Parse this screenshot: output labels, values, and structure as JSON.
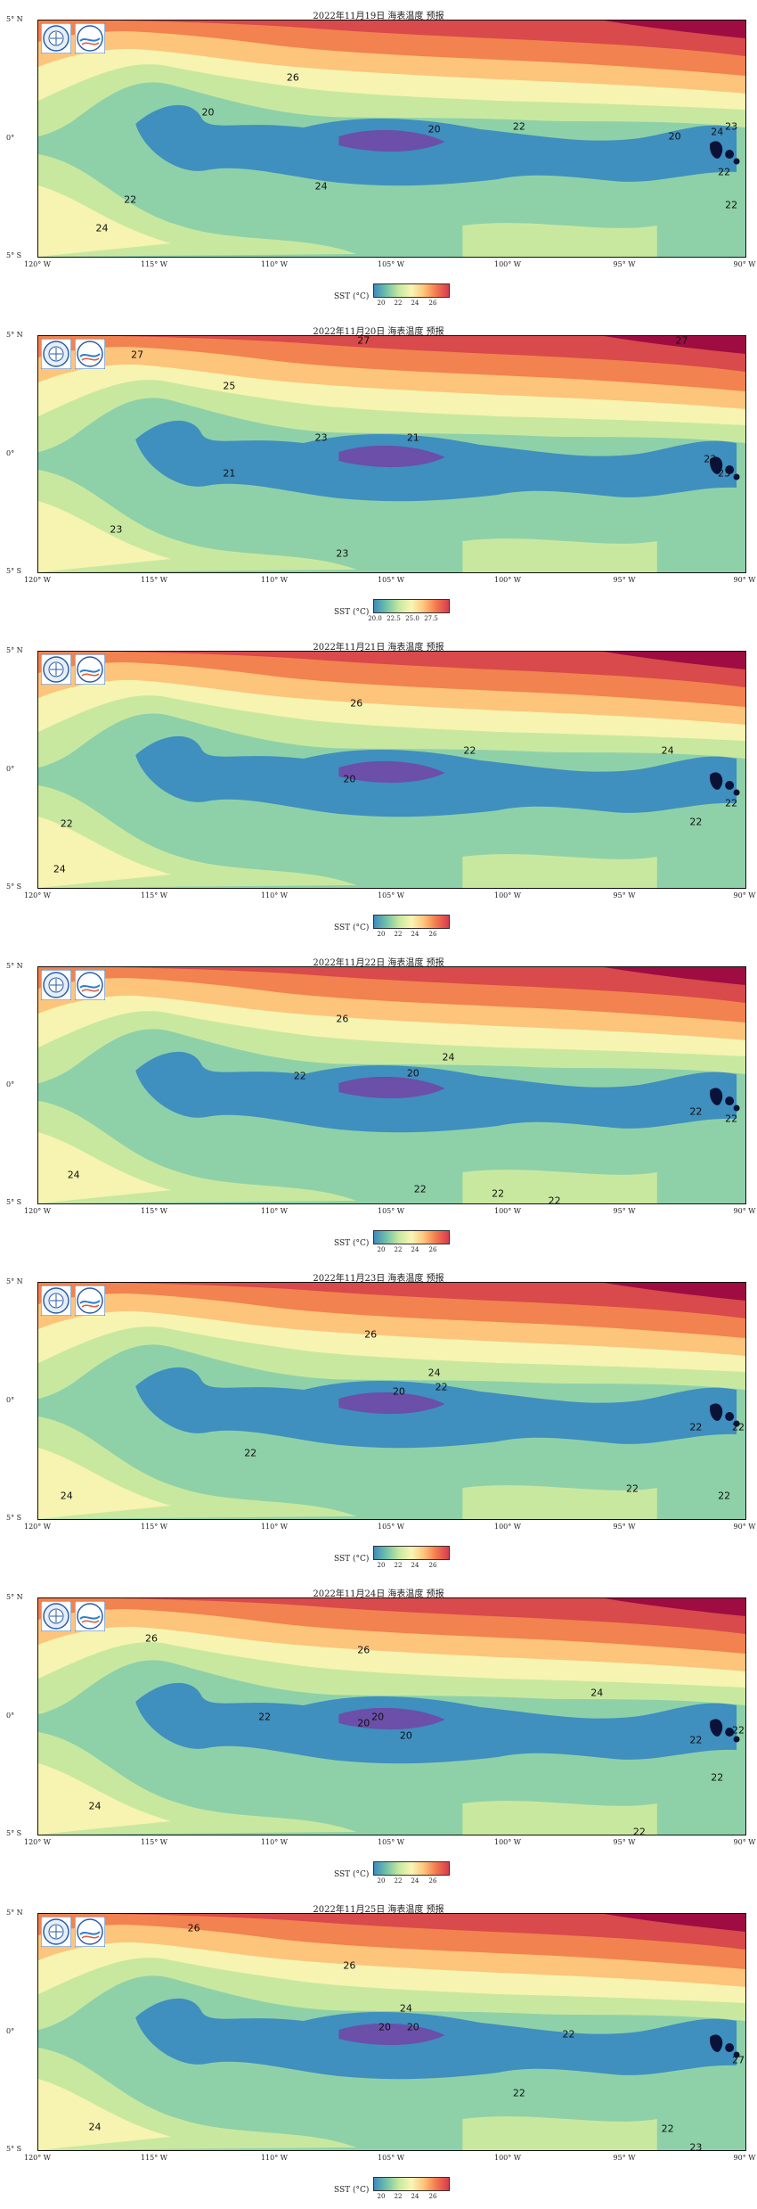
{
  "panels": [
    {
      "title": "2022年11月19日 海表温度 预报",
      "labels": [
        [
          "26",
          36,
          24
        ],
        [
          "24",
          40,
          70
        ],
        [
          "20",
          24,
          39
        ],
        [
          "20",
          56,
          46
        ],
        [
          "22",
          68,
          45
        ],
        [
          "20",
          90,
          49
        ],
        [
          "24",
          96,
          47
        ],
        [
          "23",
          98,
          45
        ],
        [
          "22",
          97,
          64
        ],
        [
          "22",
          98,
          78
        ],
        [
          "22",
          13,
          76
        ],
        [
          "24",
          9,
          88
        ]
      ],
      "cbar_ticks": [
        "20",
        "22",
        "24",
        "26"
      ]
    },
    {
      "title": "2022年11月20日 海表温度 预报",
      "labels": [
        [
          "27",
          14,
          8
        ],
        [
          "27",
          46,
          2
        ],
        [
          "27",
          91,
          2
        ],
        [
          "25",
          27,
          21
        ],
        [
          "23",
          40,
          43
        ],
        [
          "21",
          53,
          43
        ],
        [
          "21",
          27,
          58
        ],
        [
          "23",
          95,
          52
        ],
        [
          "23",
          97,
          58
        ],
        [
          "23",
          11,
          82
        ],
        [
          "23",
          43,
          92
        ]
      ],
      "cbar_ticks": [
        "20.0",
        "22.5",
        "25.0",
        "27.5"
      ]
    },
    {
      "title": "2022年11月21日 海表温度 预报",
      "labels": [
        [
          "26",
          45,
          22
        ],
        [
          "22",
          61,
          42
        ],
        [
          "24",
          89,
          42
        ],
        [
          "20",
          44,
          54
        ],
        [
          "22",
          93,
          72
        ],
        [
          "22",
          98,
          64
        ],
        [
          "22",
          4,
          73
        ],
        [
          "24",
          3,
          92
        ]
      ],
      "cbar_ticks": [
        "20",
        "22",
        "24",
        "26"
      ]
    },
    {
      "title": "2022年11月22日 海表温度 预报",
      "labels": [
        [
          "26",
          43,
          22
        ],
        [
          "24",
          58,
          38
        ],
        [
          "22",
          37,
          46
        ],
        [
          "20",
          53,
          45
        ],
        [
          "22",
          93,
          61
        ],
        [
          "22",
          98,
          64
        ],
        [
          "24",
          5,
          88
        ],
        [
          "22",
          54,
          94
        ],
        [
          "22",
          65,
          96
        ],
        [
          "22",
          73,
          99
        ]
      ],
      "cbar_ticks": [
        "20",
        "22",
        "24",
        "26"
      ]
    },
    {
      "title": "2022年11月23日 海表温度 预报",
      "labels": [
        [
          "26",
          47,
          22
        ],
        [
          "24",
          56,
          38
        ],
        [
          "20",
          51,
          46
        ],
        [
          "22",
          57,
          44
        ],
        [
          "22",
          93,
          61
        ],
        [
          "22",
          99,
          61
        ],
        [
          "22",
          30,
          72
        ],
        [
          "24",
          4,
          90
        ],
        [
          "22",
          84,
          87
        ],
        [
          "22",
          97,
          90
        ]
      ],
      "cbar_ticks": [
        "20",
        "22",
        "24",
        "26"
      ]
    },
    {
      "title": "2022年11月24日 海表温度 预报",
      "labels": [
        [
          "26",
          16,
          17
        ],
        [
          "26",
          46,
          22
        ],
        [
          "24",
          79,
          40
        ],
        [
          "22",
          32,
          50
        ],
        [
          "20",
          48,
          50
        ],
        [
          "20",
          46,
          53
        ],
        [
          "20",
          52,
          58
        ],
        [
          "22",
          93,
          60
        ],
        [
          "22",
          99,
          56
        ],
        [
          "22",
          96,
          76
        ],
        [
          "24",
          8,
          88
        ],
        [
          "22",
          85,
          99
        ]
      ],
      "cbar_ticks": [
        "20",
        "22",
        "24",
        "26"
      ]
    },
    {
      "title": "2022年11月25日 海表温度 预报",
      "labels": [
        [
          "26",
          22,
          6
        ],
        [
          "26",
          44,
          22
        ],
        [
          "24",
          52,
          40
        ],
        [
          "20",
          49,
          48
        ],
        [
          "20",
          53,
          48
        ],
        [
          "22",
          75,
          51
        ],
        [
          "22",
          68,
          76
        ],
        [
          "24",
          8,
          90
        ],
        [
          "22",
          89,
          91
        ],
        [
          "23",
          93,
          99
        ],
        [
          "27",
          99,
          62
        ]
      ],
      "cbar_ticks": [
        "20",
        "22",
        "24",
        "26"
      ]
    }
  ],
  "lat_ticks": [
    "5° N",
    "0°",
    "5° S"
  ],
  "lon_ticks": [
    "120° W",
    "115° W",
    "110° W",
    "105° W",
    "100° W",
    "95° W",
    "90° W"
  ],
  "colorbar_title": "SST (°C)"
}
